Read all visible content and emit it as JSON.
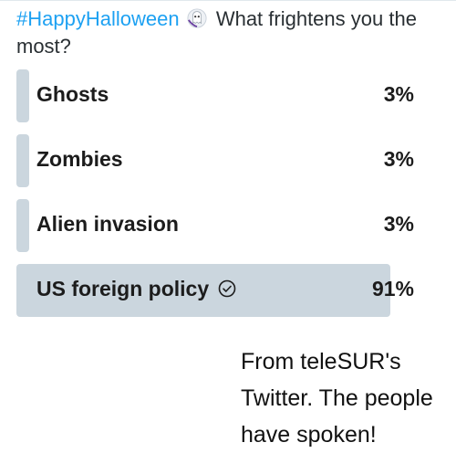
{
  "tweet": {
    "hashtag": "#HappyHalloween",
    "emoji_icon": "ghost-icon",
    "question_line1": "What frightens you the",
    "question_line2": "most?"
  },
  "poll": {
    "bar_color": "#cbd6de",
    "hashtag_color": "#1da1f2",
    "options": [
      {
        "label": "Ghosts",
        "percent": "3%",
        "value": 3,
        "selected": false
      },
      {
        "label": "Zombies",
        "percent": "3%",
        "value": 3,
        "selected": false
      },
      {
        "label": "Alien invasion",
        "percent": "3%",
        "value": 3,
        "selected": false
      },
      {
        "label": "US foreign policy",
        "percent": "91%",
        "value": 91,
        "selected": true,
        "icon": "check-circle-icon"
      }
    ]
  },
  "caption": {
    "text": "From teleSUR's Twitter. The people have spoken!"
  }
}
